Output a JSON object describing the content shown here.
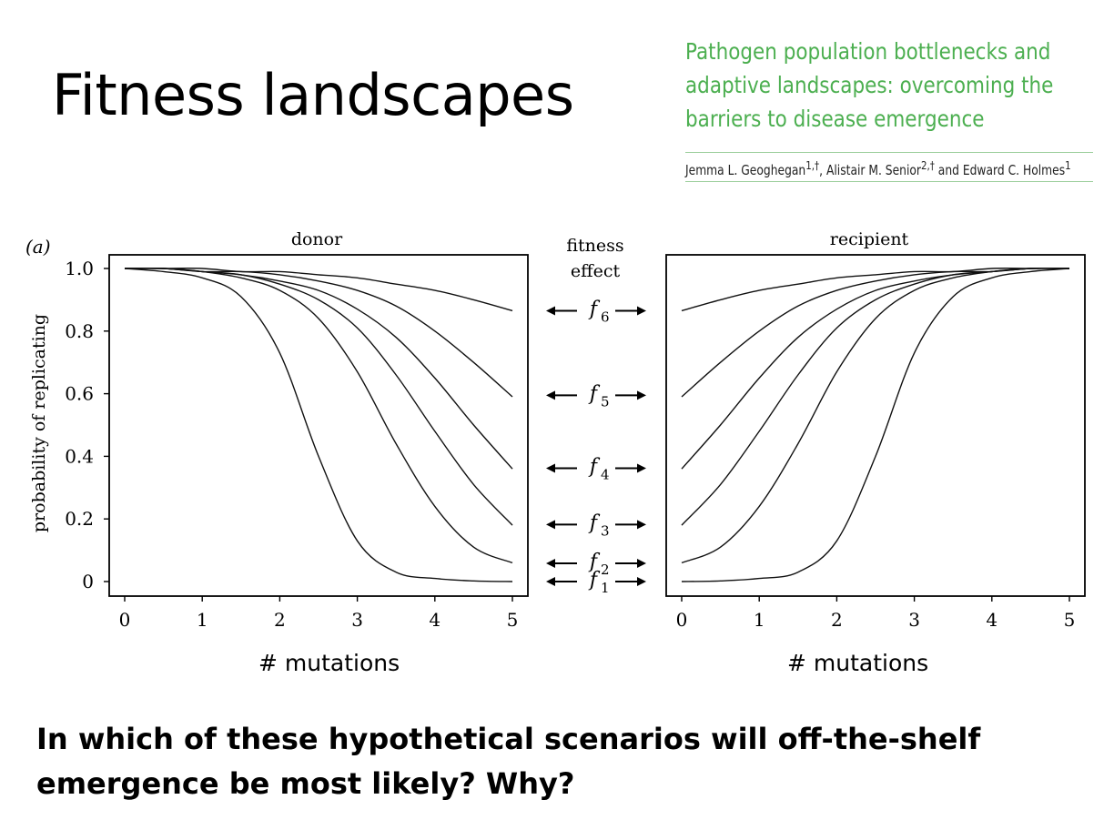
{
  "slide": {
    "title": "Fitness landscapes",
    "question": "In which of these hypothetical scenarios will off-the-shelf emergence be most likely? Why?"
  },
  "paper": {
    "title_lines": [
      "Pathogen population bottlenecks and",
      "adaptive landscapes: overcoming the",
      "barriers to disease emergence"
    ],
    "authors": "Jemma L. Geoghegan",
    "authors_sup1": "1,†",
    "authors_mid": ", Alistair M. Senior",
    "authors_sup2": "2,†",
    "authors_end": " and Edward C. Holmes",
    "authors_sup3": "1",
    "accent_color": "#4caf50"
  },
  "figure": {
    "panel_label": "(a)",
    "ylabel": "probability of replicating",
    "mutations_label": "# mutations",
    "middle_label_lines": [
      "fitness",
      "effect"
    ],
    "effects": [
      {
        "symbol": "f",
        "sub": "6",
        "level": 0.865
      },
      {
        "symbol": "f",
        "sub": "5",
        "level": 0.595
      },
      {
        "symbol": "f",
        "sub": "4",
        "level": 0.362
      },
      {
        "symbol": "f",
        "sub": "3",
        "level": 0.182
      },
      {
        "symbol": "f",
        "sub": "2",
        "level": 0.058
      },
      {
        "symbol": "f",
        "sub": "1",
        "level": 0.0
      }
    ]
  },
  "chart_data": [
    {
      "type": "line",
      "title": "donor",
      "xlabel": "# mutations",
      "ylabel": "probability of replicating",
      "xlim": [
        0,
        5
      ],
      "ylim": [
        0,
        1
      ],
      "xticks": [
        "0",
        "1",
        "2",
        "3",
        "4",
        "5"
      ],
      "yticks": [
        "0",
        "0.2",
        "0.4",
        "0.6",
        "0.8",
        "1.0"
      ],
      "x": [
        0,
        0.5,
        1,
        1.5,
        2,
        2.5,
        3,
        3.5,
        4,
        4.5,
        5
      ],
      "series": [
        {
          "name": "f1",
          "values": [
            1.0,
            0.99,
            0.97,
            0.91,
            0.73,
            0.4,
            0.13,
            0.03,
            0.01,
            0.002,
            0.0
          ]
        },
        {
          "name": "f2",
          "values": [
            1.0,
            1.0,
            0.99,
            0.97,
            0.93,
            0.84,
            0.67,
            0.44,
            0.24,
            0.11,
            0.06
          ]
        },
        {
          "name": "f3",
          "values": [
            1.0,
            1.0,
            0.99,
            0.98,
            0.95,
            0.9,
            0.81,
            0.66,
            0.48,
            0.31,
            0.18
          ]
        },
        {
          "name": "f4",
          "values": [
            1.0,
            1.0,
            0.99,
            0.98,
            0.96,
            0.93,
            0.87,
            0.78,
            0.65,
            0.5,
            0.36
          ]
        },
        {
          "name": "f5",
          "values": [
            1.0,
            1.0,
            0.99,
            0.99,
            0.98,
            0.96,
            0.93,
            0.88,
            0.8,
            0.7,
            0.59
          ]
        },
        {
          "name": "f6",
          "values": [
            1.0,
            1.0,
            1.0,
            0.99,
            0.99,
            0.98,
            0.97,
            0.95,
            0.93,
            0.9,
            0.865
          ]
        }
      ]
    },
    {
      "type": "line",
      "title": "recipient",
      "xlabel": "# mutations",
      "xlim": [
        0,
        5
      ],
      "ylim": [
        0,
        1
      ],
      "xticks": [
        "0",
        "1",
        "2",
        "3",
        "4",
        "5"
      ],
      "x": [
        0,
        0.5,
        1,
        1.5,
        2,
        2.5,
        3,
        3.5,
        4,
        4.5,
        5
      ],
      "series": [
        {
          "name": "f1",
          "values": [
            0.0,
            0.002,
            0.01,
            0.03,
            0.13,
            0.4,
            0.73,
            0.91,
            0.97,
            0.99,
            1.0
          ]
        },
        {
          "name": "f2",
          "values": [
            0.06,
            0.11,
            0.24,
            0.44,
            0.67,
            0.84,
            0.93,
            0.97,
            0.99,
            1.0,
            1.0
          ]
        },
        {
          "name": "f3",
          "values": [
            0.18,
            0.31,
            0.48,
            0.66,
            0.81,
            0.9,
            0.95,
            0.98,
            0.99,
            1.0,
            1.0
          ]
        },
        {
          "name": "f4",
          "values": [
            0.36,
            0.5,
            0.65,
            0.78,
            0.87,
            0.93,
            0.96,
            0.98,
            0.99,
            1.0,
            1.0
          ]
        },
        {
          "name": "f5",
          "values": [
            0.59,
            0.7,
            0.8,
            0.88,
            0.93,
            0.96,
            0.98,
            0.99,
            0.99,
            1.0,
            1.0
          ]
        },
        {
          "name": "f6",
          "values": [
            0.865,
            0.9,
            0.93,
            0.95,
            0.97,
            0.98,
            0.99,
            0.99,
            1.0,
            1.0,
            1.0
          ]
        }
      ]
    }
  ]
}
